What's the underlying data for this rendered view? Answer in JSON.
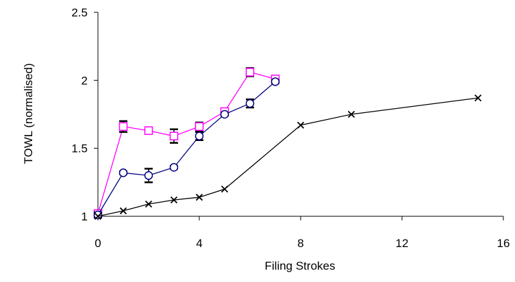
{
  "chart_data": {
    "type": "line",
    "xlabel": "Filing Strokes",
    "ylabel": "TOWL (normalised)",
    "xlim": [
      0,
      16
    ],
    "ylim": [
      1,
      2.5
    ],
    "x_ticks": [
      0,
      4,
      8,
      12,
      16
    ],
    "y_ticks": [
      1,
      1.5,
      2,
      2.5
    ],
    "y_tick_labels": [
      "1",
      "1.5",
      "2",
      "2.5"
    ],
    "grid": false,
    "legend": "none",
    "series": [
      {
        "marker": "square",
        "color": "#ff00ff",
        "x": [
          0,
          1,
          2,
          3,
          4,
          5,
          6,
          7
        ],
        "y": [
          1.02,
          1.66,
          1.63,
          1.59,
          1.66,
          1.77,
          2.06,
          2.01
        ],
        "err": [
          0.02,
          0.04,
          0.01,
          0.05,
          0.03,
          0.01,
          0.03,
          0.01
        ]
      },
      {
        "marker": "circle",
        "color": "#000080",
        "x": [
          0,
          1,
          2,
          3,
          4,
          5,
          6,
          7
        ],
        "y": [
          1.01,
          1.32,
          1.3,
          1.36,
          1.59,
          1.75,
          1.83,
          1.99
        ],
        "err": [
          0.02,
          0.01,
          0.05,
          0.01,
          0.03,
          0.01,
          0.03,
          0.01
        ]
      },
      {
        "marker": "x",
        "color": "#000000",
        "x": [
          0,
          1,
          2,
          3,
          4,
          5,
          8,
          10,
          15
        ],
        "y": [
          1.0,
          1.04,
          1.09,
          1.12,
          1.14,
          1.2,
          1.67,
          1.75,
          1.87
        ],
        "err": [
          0,
          0,
          0,
          0,
          0,
          0,
          0,
          0,
          0
        ]
      }
    ]
  }
}
